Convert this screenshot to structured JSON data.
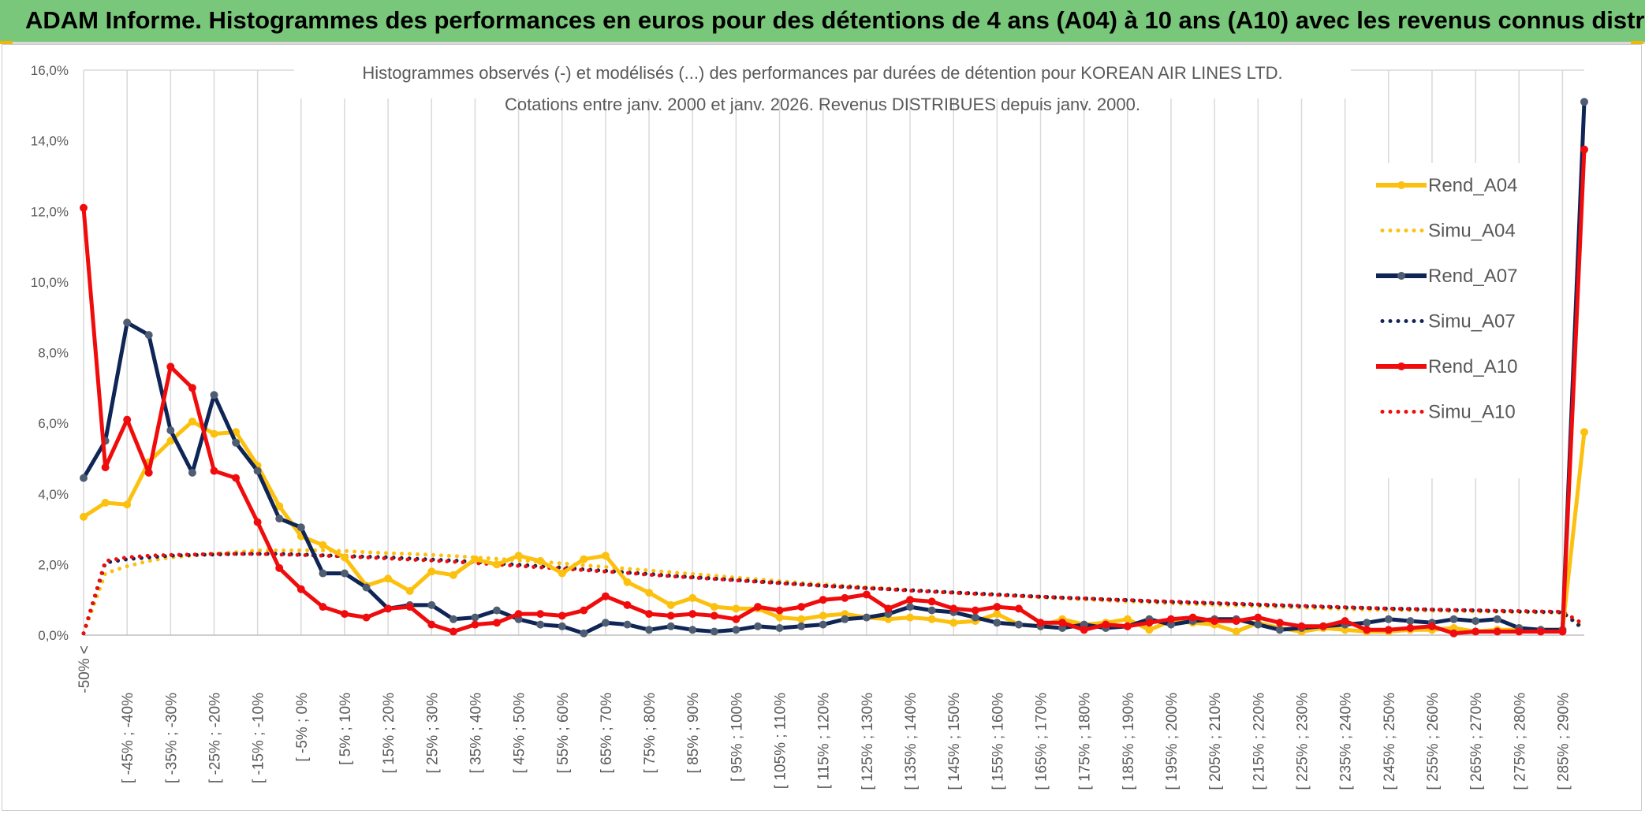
{
  "banner": {
    "title": "ADAM Informe. Histogrammes des performances en euros pour des détentions de 4 ans (A04) à 10 ans (A10) avec les revenus connus distribués"
  },
  "colors": {
    "banner_bg": "#79c77a",
    "A04": "#fcc00e",
    "A07": "#0f2556",
    "A07_marker": "#4f5d73",
    "A10": "#f00c0c",
    "grid": "#d9d9d9",
    "text": "#595959"
  },
  "chart_data": {
    "type": "line",
    "title": "Histogrammes observés (-) et modélisés (...) des performances par durées de détention pour KOREAN AIR LINES LTD.",
    "subtitle": "Cotations entre janv. 2000 et janv. 2026. Revenus DISTRIBUES depuis janv. 2000.",
    "xlabel": "",
    "ylabel": "",
    "ylim": [
      0,
      16
    ],
    "yticks": [
      "0,0%",
      "2,0%",
      "4,0%",
      "6,0%",
      "8,0%",
      "10,0%",
      "12,0%",
      "14,0%",
      "16,0%"
    ],
    "grid": true,
    "legend_position": "right",
    "category_labels": [
      "-50% <",
      "[ -45% ; -40%",
      "[ -35% ; -30%",
      "[ -25% ; -20%",
      "[ -15% ; -10%",
      "[ -5% ; 0%",
      "[ 5% ; 10%",
      "[ 15% ; 20%",
      "[ 25% ; 30%",
      "[ 35% ; 40%",
      "[ 45% ; 50%",
      "[ 55% ; 60%",
      "[ 65% ; 70%",
      "[ 75% ; 80%",
      "[ 85% ; 90%",
      "[ 95% ; 100%",
      "[ 105% ; 110%",
      "[ 115% ; 120%",
      "[ 125% ; 130%",
      "[ 135% ; 140%",
      "[ 145% ; 150%",
      "[ 155% ; 160%",
      "[ 165% ; 170%",
      "[ 175% ; 180%",
      "[ 185% ; 190%",
      "[ 195% ; 200%",
      "[ 205% ; 210%",
      "[ 215% ; 220%",
      "[ 225% ; 230%",
      "[ 235% ; 240%",
      "[ 245% ; 250%",
      "[ 255% ; 260%",
      "[ 265% ; 270%",
      "[ 275% ; 280%",
      "[ 285% ; 290%"
    ],
    "n_points": 70,
    "series": [
      {
        "name": "Rend_A04",
        "style": "solid",
        "color_key": "A04",
        "values": [
          3.35,
          3.75,
          3.7,
          4.9,
          5.5,
          6.05,
          5.7,
          5.75,
          4.8,
          3.65,
          2.8,
          2.55,
          2.2,
          1.4,
          1.6,
          1.25,
          1.8,
          1.7,
          2.15,
          2.0,
          2.25,
          2.1,
          1.75,
          2.15,
          2.25,
          1.5,
          1.2,
          0.85,
          1.05,
          0.8,
          0.75,
          0.75,
          0.5,
          0.45,
          0.55,
          0.6,
          0.5,
          0.45,
          0.5,
          0.45,
          0.35,
          0.4,
          0.6,
          0.3,
          0.25,
          0.45,
          0.3,
          0.35,
          0.45,
          0.15,
          0.4,
          0.35,
          0.3,
          0.1,
          0.35,
          0.2,
          0.1,
          0.2,
          0.15,
          0.1,
          0.1,
          0.15,
          0.15,
          0.2,
          0.1,
          0.15,
          0.15,
          0.15,
          0.15,
          5.75
        ]
      },
      {
        "name": "Simu_A04",
        "style": "dotted",
        "color_key": "A04",
        "values": [
          0.05,
          1.75,
          1.95,
          2.1,
          2.2,
          2.25,
          2.3,
          2.35,
          2.4,
          2.4,
          2.4,
          2.4,
          2.38,
          2.35,
          2.32,
          2.3,
          2.27,
          2.24,
          2.2,
          2.16,
          2.12,
          2.08,
          2.03,
          1.98,
          1.93,
          1.88,
          1.83,
          1.78,
          1.73,
          1.68,
          1.63,
          1.58,
          1.53,
          1.48,
          1.44,
          1.4,
          1.36,
          1.32,
          1.28,
          1.24,
          1.2,
          1.17,
          1.14,
          1.1,
          1.07,
          1.04,
          1.01,
          0.98,
          0.95,
          0.93,
          0.9,
          0.88,
          0.86,
          0.84,
          0.82,
          0.8,
          0.78,
          0.76,
          0.74,
          0.72,
          0.71,
          0.7,
          0.69,
          0.68,
          0.67,
          0.66,
          0.65,
          0.64,
          0.63,
          0.2
        ]
      },
      {
        "name": "Rend_A07",
        "style": "solid",
        "color_key": "A07",
        "values": [
          4.45,
          5.5,
          8.85,
          8.5,
          5.8,
          4.6,
          6.8,
          5.45,
          4.65,
          3.3,
          3.05,
          1.75,
          1.75,
          1.35,
          0.75,
          0.85,
          0.85,
          0.45,
          0.5,
          0.7,
          0.45,
          0.3,
          0.25,
          0.05,
          0.35,
          0.3,
          0.15,
          0.25,
          0.15,
          0.1,
          0.15,
          0.25,
          0.2,
          0.25,
          0.3,
          0.45,
          0.5,
          0.6,
          0.8,
          0.7,
          0.65,
          0.5,
          0.35,
          0.3,
          0.25,
          0.2,
          0.3,
          0.2,
          0.25,
          0.45,
          0.3,
          0.4,
          0.45,
          0.45,
          0.3,
          0.15,
          0.2,
          0.25,
          0.3,
          0.35,
          0.45,
          0.4,
          0.35,
          0.45,
          0.4,
          0.45,
          0.2,
          0.15,
          0.15,
          15.1
        ]
      },
      {
        "name": "Simu_A07",
        "style": "dotted",
        "color_key": "A07",
        "values": [
          0.05,
          2.05,
          2.15,
          2.2,
          2.25,
          2.27,
          2.28,
          2.3,
          2.3,
          2.3,
          2.28,
          2.26,
          2.24,
          2.22,
          2.2,
          2.17,
          2.14,
          2.11,
          2.07,
          2.03,
          1.99,
          1.95,
          1.91,
          1.86,
          1.82,
          1.77,
          1.73,
          1.68,
          1.64,
          1.6,
          1.56,
          1.52,
          1.48,
          1.44,
          1.4,
          1.37,
          1.33,
          1.3,
          1.27,
          1.24,
          1.21,
          1.18,
          1.15,
          1.12,
          1.09,
          1.06,
          1.04,
          1.01,
          0.99,
          0.96,
          0.94,
          0.92,
          0.9,
          0.88,
          0.86,
          0.84,
          0.82,
          0.8,
          0.78,
          0.77,
          0.75,
          0.74,
          0.72,
          0.71,
          0.7,
          0.68,
          0.67,
          0.66,
          0.65,
          0.15
        ]
      },
      {
        "name": "Rend_A10",
        "style": "solid",
        "color_key": "A10",
        "values": [
          12.1,
          4.75,
          6.1,
          4.6,
          7.6,
          7.0,
          4.65,
          4.45,
          3.2,
          1.9,
          1.3,
          0.8,
          0.6,
          0.5,
          0.75,
          0.8,
          0.3,
          0.1,
          0.3,
          0.35,
          0.6,
          0.6,
          0.55,
          0.7,
          1.1,
          0.85,
          0.6,
          0.55,
          0.6,
          0.55,
          0.45,
          0.8,
          0.7,
          0.8,
          1.0,
          1.05,
          1.15,
          0.75,
          1.0,
          0.95,
          0.75,
          0.7,
          0.8,
          0.75,
          0.35,
          0.35,
          0.15,
          0.3,
          0.25,
          0.35,
          0.45,
          0.5,
          0.4,
          0.4,
          0.5,
          0.35,
          0.25,
          0.25,
          0.4,
          0.15,
          0.15,
          0.2,
          0.25,
          0.05,
          0.1,
          0.1,
          0.1,
          0.1,
          0.1,
          13.75
        ]
      },
      {
        "name": "Simu_A10",
        "style": "dotted",
        "color_key": "A10",
        "values": [
          0.05,
          2.1,
          2.2,
          2.25,
          2.27,
          2.28,
          2.3,
          2.3,
          2.3,
          2.28,
          2.27,
          2.25,
          2.23,
          2.2,
          2.17,
          2.14,
          2.11,
          2.08,
          2.04,
          2.0,
          1.96,
          1.92,
          1.88,
          1.84,
          1.8,
          1.76,
          1.71,
          1.67,
          1.63,
          1.59,
          1.55,
          1.51,
          1.47,
          1.43,
          1.4,
          1.36,
          1.33,
          1.3,
          1.26,
          1.23,
          1.2,
          1.17,
          1.14,
          1.11,
          1.09,
          1.06,
          1.04,
          1.01,
          0.99,
          0.97,
          0.95,
          0.93,
          0.91,
          0.89,
          0.87,
          0.85,
          0.83,
          0.81,
          0.79,
          0.77,
          0.75,
          0.74,
          0.72,
          0.71,
          0.7,
          0.69,
          0.68,
          0.67,
          0.66,
          0.3
        ]
      }
    ]
  }
}
